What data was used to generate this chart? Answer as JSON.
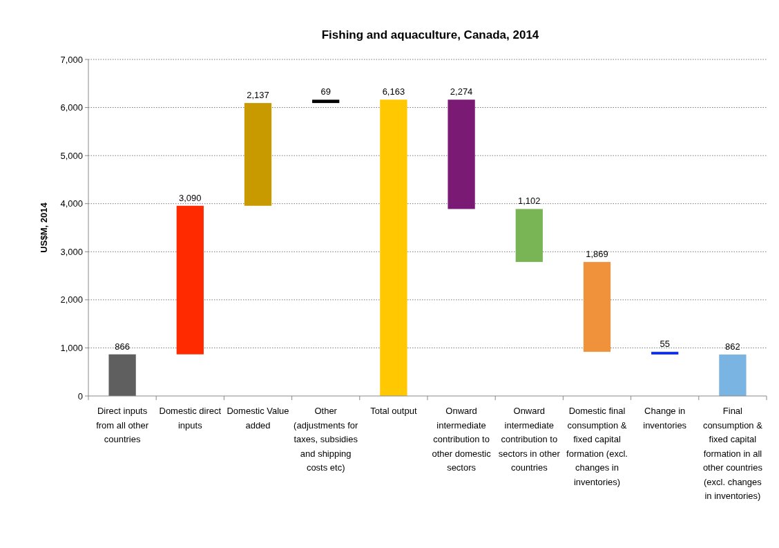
{
  "chart_data": {
    "type": "bar",
    "title": "Fishing and aquaculture, Canada, 2014",
    "ylabel": "US$M, 2014",
    "categories": [
      "Direct inputs from all other countries",
      "Domestic direct inputs",
      "Domestic Value added",
      "Other (adjustments for taxes, subsidies and shipping costs etc)",
      "Total output",
      "Onward intermediate contribution to other domestic sectors",
      "Onward intermediate contribution to sectors in other countries",
      "Domestic final consumption & fixed capital formation (excl. changes in inventories)",
      "Change in inventories",
      "Final consumption & fixed capital formation in all other countries (excl. changes in inventories)"
    ],
    "values": [
      866,
      3090,
      2137,
      69,
      6163,
      2274,
      1102,
      1869,
      55,
      862
    ],
    "base": [
      0,
      866,
      3956,
      6093,
      0,
      3889,
      2787,
      918,
      863,
      0
    ],
    "colors": [
      "#5f5f5f",
      "#ff2a00",
      "#c99a00",
      "#000000",
      "#ffc800",
      "#7a1a74",
      "#7ab555",
      "#f0913c",
      "#0b2cff",
      "#7ab4e2"
    ],
    "ylim": [
      0,
      7000
    ],
    "yticks": [
      {
        "value": 0,
        "label": "0"
      },
      {
        "value": 1000,
        "label": "1,000"
      },
      {
        "value": 2000,
        "label": "2,000"
      },
      {
        "value": 3000,
        "label": "3,000"
      },
      {
        "value": 4000,
        "label": "4,000"
      },
      {
        "value": 5000,
        "label": "5,000"
      },
      {
        "value": 6000,
        "label": "6,000"
      },
      {
        "value": 7000,
        "label": "7,000"
      }
    ],
    "value_labels": [
      "866",
      "3,090",
      "2,137",
      "69",
      "6,163",
      "2,274",
      "1,102",
      "1,869",
      "55",
      "862"
    ],
    "grid": "y"
  }
}
